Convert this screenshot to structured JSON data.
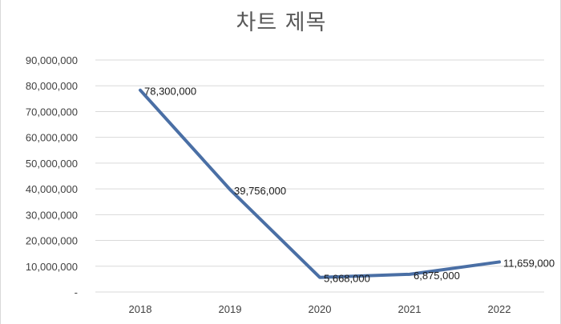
{
  "chart_data": {
    "type": "line",
    "title": "차트 제목",
    "xlabel": "",
    "ylabel": "",
    "categories": [
      "2018",
      "2019",
      "2020",
      "2021",
      "2022"
    ],
    "series": [
      {
        "values": [
          78300000,
          39756000,
          5668000,
          6875000,
          11659000
        ],
        "data_labels": [
          "78,300,000",
          "39,756,000",
          "5,668,000",
          "6,875,000",
          "11,659,000"
        ]
      }
    ],
    "ylim": [
      0,
      90000000
    ],
    "y_ticks": [
      {
        "value": 90000000,
        "label": "90,000,000"
      },
      {
        "value": 80000000,
        "label": "80,000,000"
      },
      {
        "value": 70000000,
        "label": "70,000,000"
      },
      {
        "value": 60000000,
        "label": "60,000,000"
      },
      {
        "value": 50000000,
        "label": "50,000,000"
      },
      {
        "value": 40000000,
        "label": "40,000,000"
      },
      {
        "value": 30000000,
        "label": "30,000,000"
      },
      {
        "value": 20000000,
        "label": "20,000,000"
      },
      {
        "value": 10000000,
        "label": "10,000,000"
      },
      {
        "value": 0,
        "label": "-"
      }
    ],
    "grid": true,
    "legend": "none",
    "colors": {
      "line": "#4a6fa5",
      "grid": "#d9d9d9",
      "axis_text": "#404040",
      "title": "#595959"
    }
  }
}
